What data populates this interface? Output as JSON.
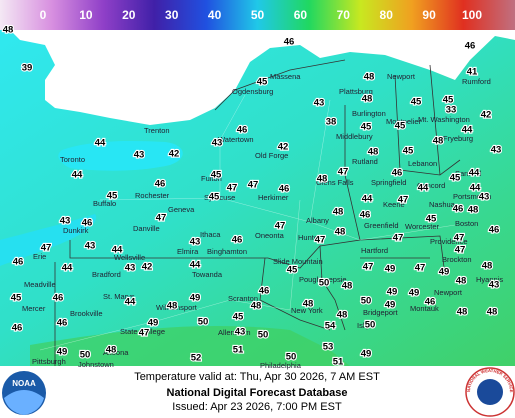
{
  "legend": {
    "ticks": [
      0,
      10,
      20,
      30,
      40,
      50,
      60,
      70,
      80,
      90,
      100
    ],
    "colors": [
      "#f4e8f4",
      "#d890e0",
      "#9040c8",
      "#4020a8",
      "#2050e0",
      "#20c8e8",
      "#20d860",
      "#c8e820",
      "#f0a020",
      "#e03020",
      "#c07080"
    ]
  },
  "temperatures": [
    48,
    39,
    46,
    45,
    48,
    46,
    41,
    45,
    43,
    48,
    45,
    42,
    33,
    38,
    45,
    45,
    44,
    46,
    43,
    44,
    43,
    42,
    42,
    48,
    43,
    45,
    48,
    44,
    45,
    46,
    47,
    47,
    46,
    47,
    48,
    46,
    44,
    45,
    44,
    44,
    45,
    45,
    44,
    46,
    43,
    47,
    43,
    46,
    47,
    47,
    48,
    46,
    45,
    48,
    46,
    43,
    46,
    43,
    47,
    48,
    47,
    47,
    47,
    44,
    47,
    46,
    44,
    42,
    44,
    45,
    47,
    49,
    47,
    48,
    43,
    49,
    45,
    46,
    44,
    48,
    49,
    46,
    50,
    48,
    49,
    49,
    48,
    43,
    46,
    45,
    46,
    49,
    50,
    48,
    48,
    50,
    49,
    46,
    48,
    48,
    48,
    43,
    50,
    54,
    50,
    53,
    49,
    50,
    48,
    47,
    52,
    51,
    50,
    51,
    49
  ],
  "cities": [
    "Massena",
    "Ogdensburg",
    "Plattsburg",
    "Newport",
    "Burlington",
    "Montpelier",
    "Mt. Washington",
    "Middlebury",
    "Rumford",
    "Fryeburg",
    "Trenton",
    "Watertown",
    "Toronto",
    "Old Forge",
    "Rutland",
    "Lebanon",
    "Concord",
    "Sanford",
    "Rochester",
    "Fulton",
    "Syracuse",
    "Herkimer",
    "Glens Falls",
    "Springfield",
    "Keene",
    "Nashua",
    "Portsmouth",
    "Buffalo",
    "Geneva",
    "Albany",
    "Greenfield",
    "Worcester",
    "Boston",
    "Dunkirk",
    "Danville",
    "Ithaca",
    "Oneonta",
    "Hunter",
    "Providence",
    "Erie",
    "Wellsville",
    "Elmira",
    "Binghamton",
    "Hartford",
    "Brockton",
    "Hyannis",
    "Bradford",
    "Towanda",
    "Slide Mountain",
    "Meadville",
    "St. Marys",
    "Scranton",
    "Poughkeepsie",
    "Bridgeport",
    "Newport",
    "Mercer",
    "Brookville",
    "Williamsport",
    "Allentown",
    "New York",
    "State College",
    "Islip",
    "Montauk",
    "Altoona",
    "Pittsburgh",
    "Johnstown",
    "Philadelphia"
  ],
  "footer": {
    "valid": "Temperature valid at: Thu, Apr 30 2026, 7 AM EST",
    "title": "National Digital Forecast Database",
    "issued": "Issued: Apr 23 2026, 7:00 PM EST"
  },
  "logos": {
    "noaa": "NOAA",
    "nws": "NATIONAL WEATHER SERVICE"
  }
}
